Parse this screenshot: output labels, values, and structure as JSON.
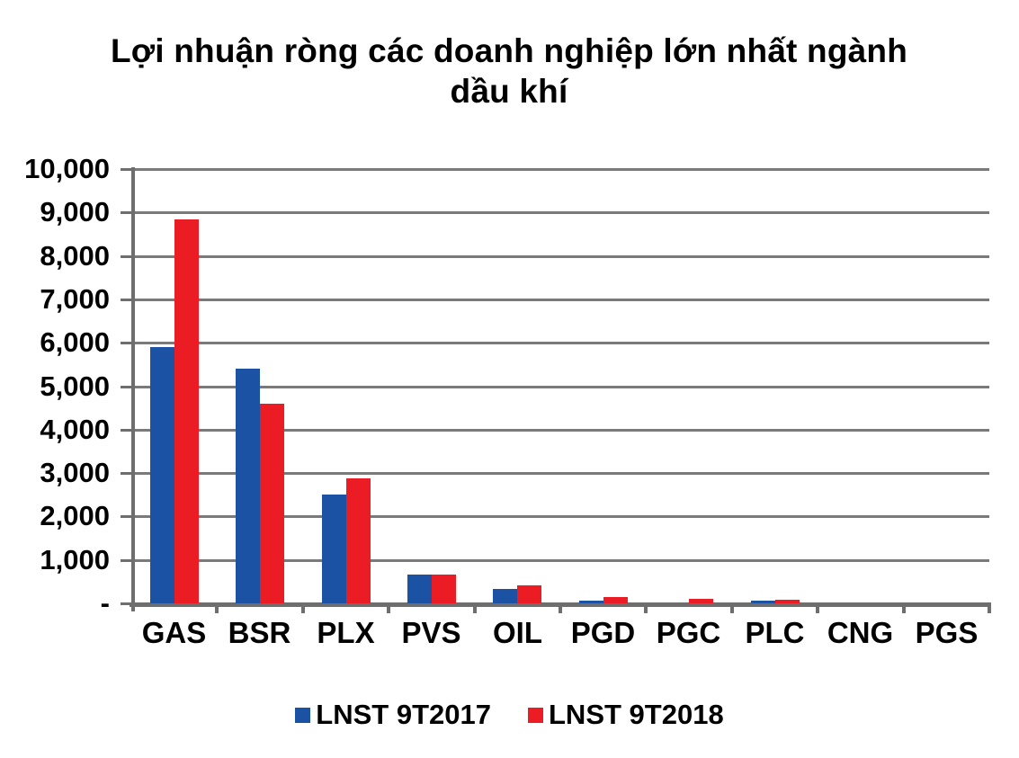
{
  "chart_data": {
    "type": "bar",
    "title": "Lợi nhuận ròng các doanh nghiệp lớn nhất ngành dầu khí",
    "categories": [
      "GAS",
      "BSR",
      "PLX",
      "PVS",
      "OIL",
      "PGD",
      "PGC",
      "PLC",
      "CNG",
      "PGS"
    ],
    "series": [
      {
        "name": "LNST 9T2017",
        "color": "#1b52a4",
        "values": [
          5900,
          5400,
          2500,
          660,
          340,
          60,
          0,
          70,
          0,
          0
        ]
      },
      {
        "name": "LNST 9T2018",
        "color": "#ec1c24",
        "values": [
          8850,
          4600,
          2870,
          660,
          410,
          140,
          95,
          90,
          0,
          0
        ]
      }
    ],
    "xlabel": "",
    "ylabel": "",
    "ylim": [
      0,
      10000
    ],
    "ytick_interval": 1000,
    "ytick_labels": [
      "-",
      "1,000",
      "2,000",
      "3,000",
      "4,000",
      "5,000",
      "6,000",
      "7,000",
      "8,000",
      "9,000",
      "10,000"
    ],
    "grid": true,
    "legend_position": "bottom",
    "grid_color": "#7a7a7a",
    "axis_color": "#6e6e6e",
    "text_color": "#000000"
  }
}
